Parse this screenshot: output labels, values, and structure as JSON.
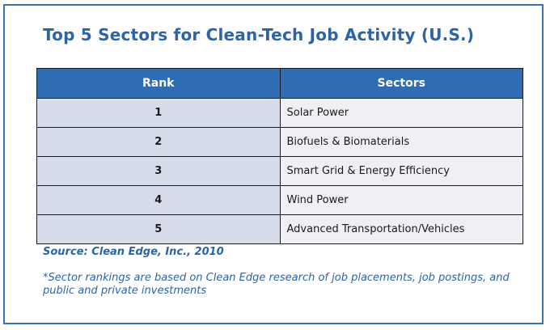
{
  "title": "Top 5 Sectors for Clean-Tech Job Activity (U.S.)",
  "table": {
    "headers": [
      "Rank",
      "Sectors"
    ],
    "rows": [
      {
        "rank": "1",
        "sector": "Solar Power"
      },
      {
        "rank": "2",
        "sector": "Biofuels & Biomaterials"
      },
      {
        "rank": "3",
        "sector": "Smart Grid & Energy Efficiency"
      },
      {
        "rank": "4",
        "sector": "Wind Power"
      },
      {
        "rank": "5",
        "sector": "Advanced Transportation/Vehicles"
      }
    ]
  },
  "source": "Source: Clean Edge, Inc., 2010",
  "note": "*Sector rankings are based on Clean Edge research of job placements, job postings, and public and private investments",
  "colors": {
    "accent": "#2c64a8",
    "header_bg": "#2e6db4",
    "rank_cell_bg": "#d6dcea",
    "sector_cell_bg": "#eef0f6",
    "frame_border": "#3a73b5"
  }
}
